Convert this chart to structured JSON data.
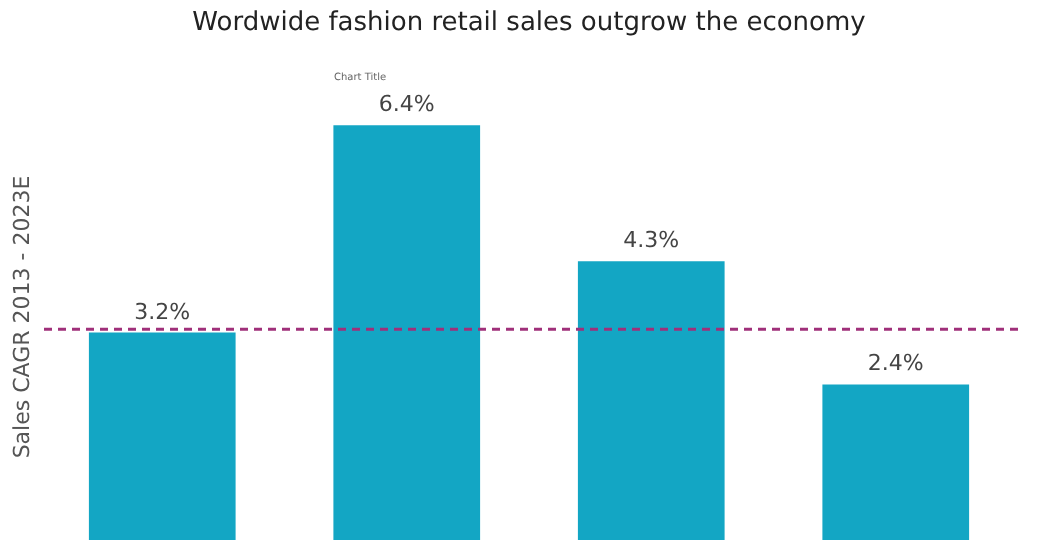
{
  "chart_data": {
    "type": "bar",
    "title": "Wordwide fashion retail sales outgrow the economy",
    "ylabel": "Sales CAGR 2013 - 2023E",
    "categories": [
      null,
      null,
      null,
      null
    ],
    "values": [
      3.2,
      6.4,
      4.3,
      2.4
    ],
    "value_labels": [
      "3.2%",
      "6.4%",
      "4.3%",
      "2.4%"
    ],
    "color": "#13a6c4",
    "ref_lines": [
      {
        "axis": "y",
        "value": 3.25,
        "color": "#a0307a",
        "line_style": "dashed"
      }
    ],
    "annotations": [
      "Chart Title"
    ],
    "grid": false,
    "tick_labels": false
  }
}
